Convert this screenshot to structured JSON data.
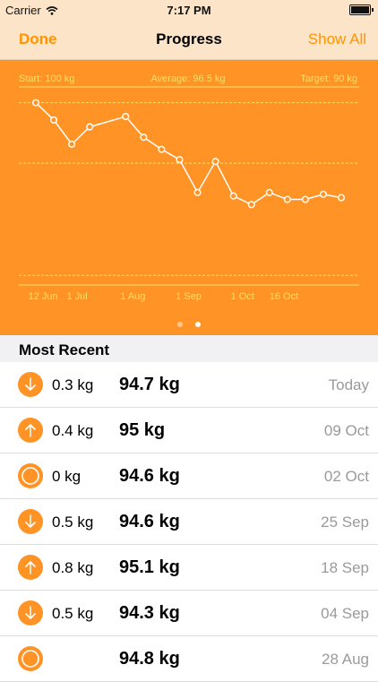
{
  "status_bar": {
    "carrier": "Carrier",
    "time": "7:17 PM"
  },
  "nav": {
    "left_button": "Done",
    "title": "Progress",
    "right_button": "Show All"
  },
  "chart_data": {
    "type": "line",
    "header_labels": {
      "start": "Start: 100 kg",
      "average": "Average: 96.5 kg",
      "target": "Target: 90 kg"
    },
    "x_tick_labels": [
      "12 Jun",
      "1 Jul",
      "1 Aug",
      "1 Sep",
      "1 Oct",
      "16 Oct"
    ],
    "reference_lines": {
      "start": 100,
      "average": 96.5,
      "target": 90
    },
    "ylim": [
      89.6,
      100.5
    ],
    "points": [
      {
        "date": "2015-06-08",
        "value": 100.0
      },
      {
        "date": "2015-06-18",
        "value": 99.0
      },
      {
        "date": "2015-06-28",
        "value": 97.6
      },
      {
        "date": "2015-07-08",
        "value": 98.6
      },
      {
        "date": "2015-07-28",
        "value": 99.2
      },
      {
        "date": "2015-08-07",
        "value": 98.0
      },
      {
        "date": "2015-08-17",
        "value": 97.3
      },
      {
        "date": "2015-08-27",
        "value": 96.7
      },
      {
        "date": "2015-09-06",
        "value": 94.8
      },
      {
        "date": "2015-09-16",
        "value": 96.6
      },
      {
        "date": "2015-09-26",
        "value": 94.6
      },
      {
        "date": "2015-10-06",
        "value": 94.1
      },
      {
        "date": "2015-10-16",
        "value": 94.8
      },
      {
        "date": "2015-10-26",
        "value": 94.4
      },
      {
        "date": "2015-11-05",
        "value": 94.4
      },
      {
        "date": "2015-11-15",
        "value": 94.7
      },
      {
        "date": "2015-11-25",
        "value": 94.5
      }
    ],
    "tick_dates": [
      "2015-06-12",
      "2015-07-01",
      "2015-08-01",
      "2015-09-01",
      "2015-10-01",
      "2015-10-16"
    ],
    "colors": {
      "background": "#ff9325",
      "line": "#ffffff",
      "reference": "#ffe066",
      "label": "#ffe066"
    }
  },
  "page_indicator": {
    "count": 2,
    "active": 1
  },
  "section_header": "Most Recent",
  "entries": [
    {
      "direction": "down",
      "change": "0.3 kg",
      "weight": "94.7 kg",
      "date": "Today"
    },
    {
      "direction": "up",
      "change": "0.4 kg",
      "weight": "95 kg",
      "date": "09 Oct"
    },
    {
      "direction": "none",
      "change": "0 kg",
      "weight": "94.6 kg",
      "date": "02 Oct"
    },
    {
      "direction": "down",
      "change": "0.5 kg",
      "weight": "94.6 kg",
      "date": "25 Sep"
    },
    {
      "direction": "up",
      "change": "0.8 kg",
      "weight": "95.1 kg",
      "date": "18 Sep"
    },
    {
      "direction": "down",
      "change": "0.5 kg",
      "weight": "94.3 kg",
      "date": "04 Sep"
    },
    {
      "direction": "none",
      "change": "",
      "weight": "94.8 kg",
      "date": "28 Aug"
    }
  ],
  "icons": {
    "down": "arrow-down-circle-icon",
    "up": "arrow-up-circle-icon",
    "none": "circle-icon"
  },
  "accent_color": "#ff9300"
}
